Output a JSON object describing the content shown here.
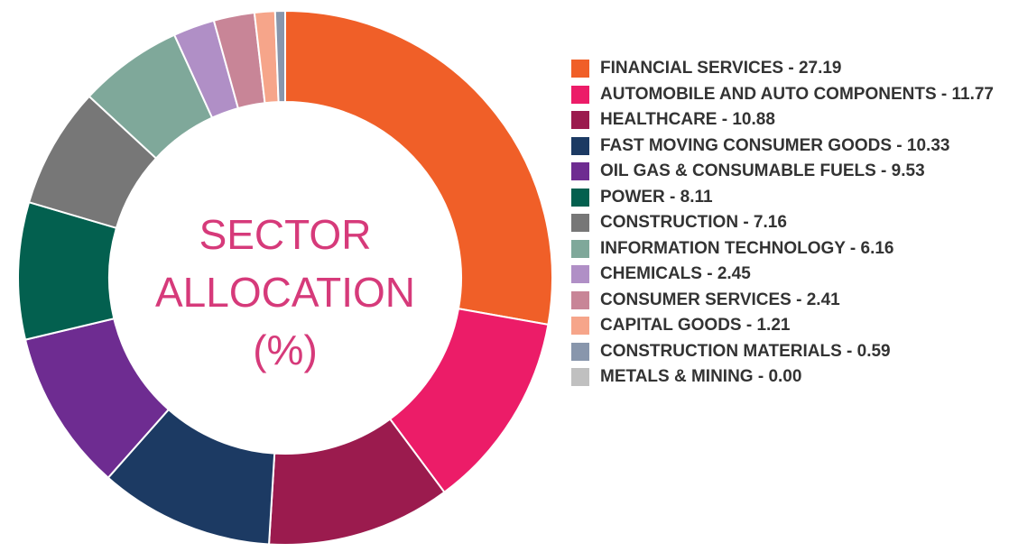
{
  "chart_data": {
    "type": "donut",
    "title": "SECTOR ALLOCATION (%)",
    "categories": [
      "FINANCIAL SERVICES - 27.19",
      "AUTOMOBILE AND AUTO COMPONENTS - 11.77",
      "HEALTHCARE - 10.88",
      "FAST MOVING CONSUMER GOODS - 10.33",
      "OIL GAS & CONSUMABLE FUELS - 9.53",
      "POWER - 8.11",
      "CONSTRUCTION - 7.16",
      "INFORMATION TECHNOLOGY - 6.16",
      "CHEMICALS - 2.45",
      "CONSUMER SERVICES - 2.41",
      "CAPITAL GOODS - 1.21",
      "CONSTRUCTION MATERIALS - 0.59",
      "METALS & MINING - 0.00"
    ],
    "values": [
      27.19,
      11.77,
      10.88,
      10.33,
      9.53,
      8.11,
      7.16,
      6.16,
      2.45,
      2.41,
      1.21,
      0.59,
      0
    ],
    "colors": [
      "#f05f28",
      "#ec1c68",
      "#9b1b4e",
      "#1c3a63",
      "#6e2c91",
      "#03604f",
      "#777777",
      "#7fa89a",
      "#b08fc6",
      "#c88597",
      "#f6a58a",
      "#8896ac",
      "#c0c0c0"
    ],
    "legend": "right"
  }
}
